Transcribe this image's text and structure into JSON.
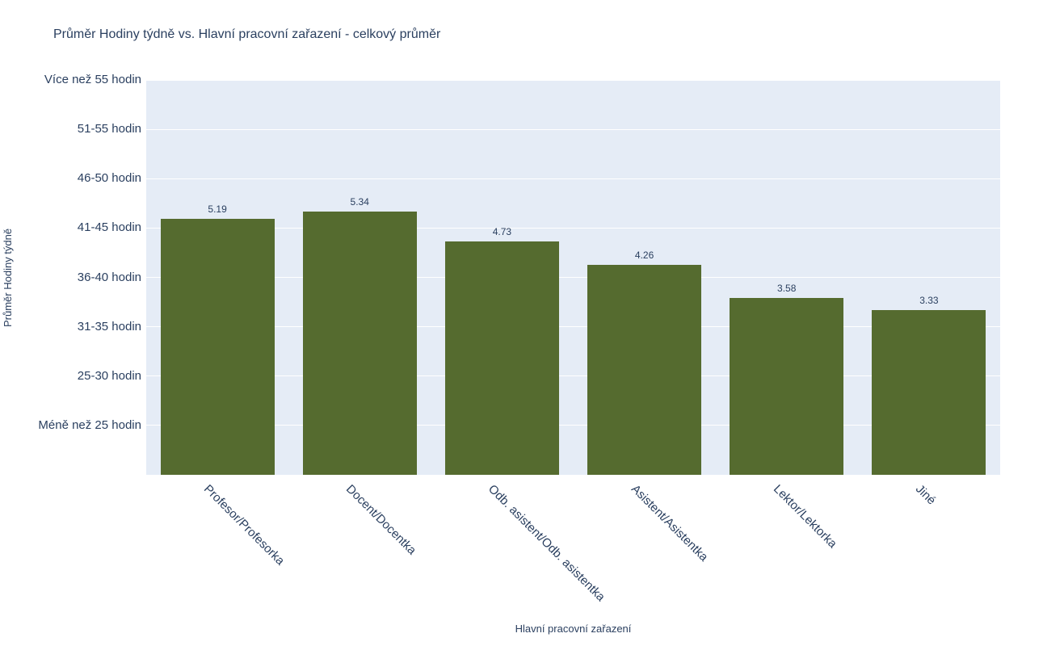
{
  "chart_data": {
    "type": "bar",
    "title": "Průměr Hodiny týdně vs. Hlavní pracovní zařazení - celkový průměr",
    "xlabel": "Hlavní pracovní zařazení",
    "ylabel": "Průměr Hodiny týdně",
    "categories": [
      "Profesor/Profesorka",
      "Docent/Docentka",
      "Odb. asistent/Odb. asistentka",
      "Asistent/Asistentka",
      "Lektor/Lektorka",
      "Jiné"
    ],
    "values": [
      5.19,
      5.34,
      4.73,
      4.26,
      3.58,
      3.33
    ],
    "bar_value_labels": [
      "5.19",
      "5.34",
      "4.73",
      "4.26",
      "3.58",
      "3.33"
    ],
    "ytick_values": [
      1,
      2,
      3,
      4,
      5,
      6,
      7,
      8
    ],
    "ytick_labels": [
      "Méně než 25 hodin",
      "25-30 hodin",
      "31-35 hodin",
      "36-40 hodin",
      "41-45 hodin",
      "46-50 hodin",
      "51-55 hodin",
      "Více než 55 hodin"
    ],
    "ylim": [
      0,
      8
    ],
    "grid": true,
    "legend": false,
    "bar_width_fraction": 0.8,
    "colors": {
      "bar": "#556B2F",
      "plot_background": "#E5ECF6",
      "gridline": "#FFFFFF",
      "text": "#2A3F5F",
      "page_background": "#FFFFFF"
    }
  }
}
